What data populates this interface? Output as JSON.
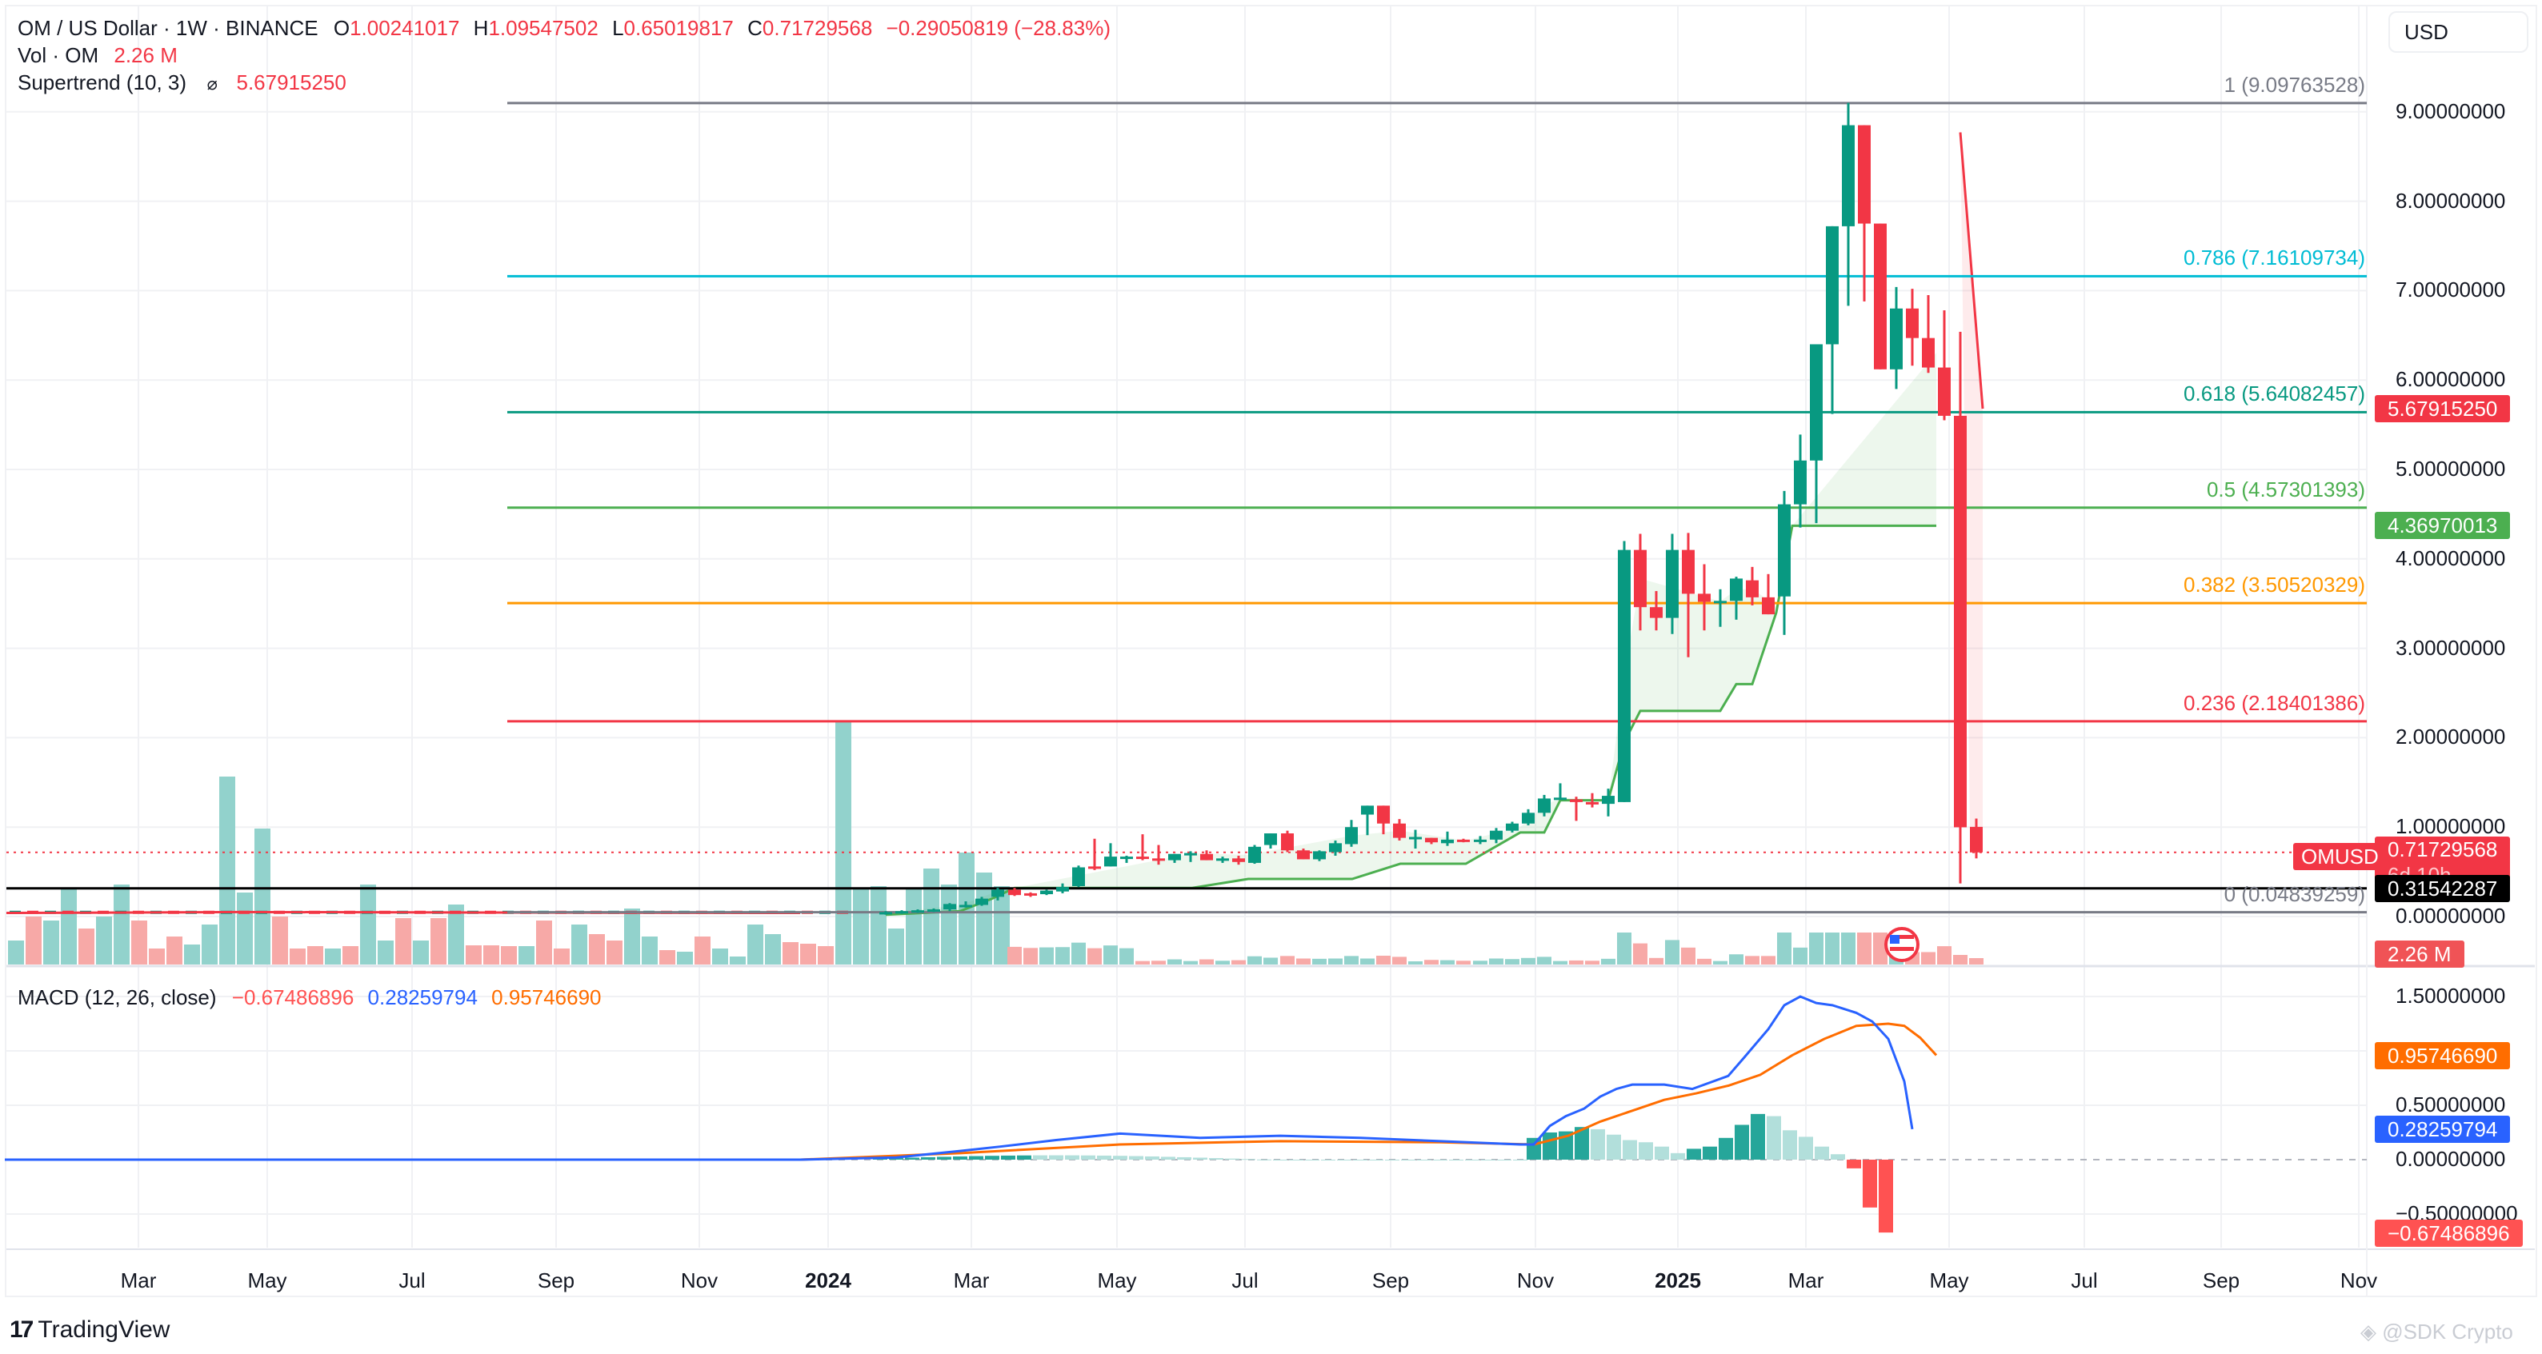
{
  "header": {
    "symbol_title": "OM / US Dollar · 1W · BINANCE",
    "ohlc": [
      {
        "key": "O",
        "value": "1.00241017"
      },
      {
        "key": "H",
        "value": "1.09547502"
      },
      {
        "key": "L",
        "value": "0.65019817"
      },
      {
        "key": "C",
        "value": "0.71729568"
      }
    ],
    "change": "−0.29050819 (−28.83%)",
    "volume_label": "Vol · OM",
    "volume_value": "2.26 M",
    "supertrend_label": "Supertrend (10, 3)",
    "supertrend_icon": "hidden-eye-icon",
    "supertrend_value": "5.67915250"
  },
  "currency_button": "USD",
  "price_axis": {
    "ticks": [
      "9.00000000",
      "8.00000000",
      "7.00000000",
      "6.00000000",
      "5.00000000",
      "4.00000000",
      "3.00000000",
      "2.00000000",
      "1.00000000",
      "0.00000000"
    ],
    "tick_values": [
      9,
      8,
      7,
      6,
      5,
      4,
      3,
      2,
      1,
      0
    ],
    "badges": [
      {
        "name": "supertrend-upper-badge",
        "value": "5.67915250",
        "price": 5.6792,
        "color": "#f23645"
      },
      {
        "name": "supertrend-lower-badge",
        "value": "4.36970013",
        "price": 4.3697,
        "color": "#4caf50"
      },
      {
        "name": "last-price-badge",
        "value": "0.71729568",
        "sub": "6d 10h",
        "price": 0.7173,
        "color": "#f23645"
      },
      {
        "name": "horizontal-line-badge",
        "value": "0.31542287",
        "price": 0.3154,
        "color": "#000000"
      },
      {
        "name": "volume-badge",
        "value": "2.26 M",
        "color": "#f05356"
      }
    ],
    "symbol_tag": "OMUSD"
  },
  "fibonacci": [
    {
      "level": "1",
      "price": 9.09763528,
      "label": "1 (9.09763528)",
      "color": "#787b86"
    },
    {
      "level": "0.786",
      "price": 7.16109734,
      "label": "0.786 (7.16109734)",
      "color": "#00bcd4"
    },
    {
      "level": "0.618",
      "price": 5.64082457,
      "label": "0.618 (5.64082457)",
      "color": "#089981"
    },
    {
      "level": "0.5",
      "price": 4.57301393,
      "label": "0.5 (4.57301393)",
      "color": "#4caf50"
    },
    {
      "level": "0.382",
      "price": 3.50520329,
      "label": "0.382 (3.50520329)",
      "color": "#ff9800"
    },
    {
      "level": "0.236",
      "price": 2.18401386,
      "label": "0.236 (2.18401386)",
      "color": "#f23645"
    },
    {
      "level": "0",
      "price": 0.04839259,
      "label": "0 (0.04839259)",
      "color": "#787b86"
    }
  ],
  "macd": {
    "label": "MACD (12, 26, close)",
    "histogram": "−0.67486896",
    "macd_line": "0.28259794",
    "signal_line": "0.95746690",
    "ticks": [
      "1.50000000",
      "0.50000000",
      "0.00000000",
      "−0.50000000"
    ],
    "tick_values": [
      1.5,
      0.5,
      0,
      -0.5
    ],
    "badges": [
      {
        "value": "0.95746690",
        "v": 0.9575,
        "color": "#ff6d00"
      },
      {
        "value": "0.28259794",
        "v": 0.2826,
        "color": "#2962ff"
      },
      {
        "value": "−0.67486896",
        "v": -0.6749,
        "color": "#ff5252"
      }
    ]
  },
  "time_axis": [
    {
      "label": "Mar",
      "x": 173
    },
    {
      "label": "May",
      "x": 334
    },
    {
      "label": "Jul",
      "x": 515
    },
    {
      "label": "Sep",
      "x": 695
    },
    {
      "label": "Nov",
      "x": 874
    },
    {
      "label": "2024",
      "x": 1035,
      "year": true
    },
    {
      "label": "Mar",
      "x": 1214
    },
    {
      "label": "May",
      "x": 1396
    },
    {
      "label": "Jul",
      "x": 1556
    },
    {
      "label": "Sep",
      "x": 1738
    },
    {
      "label": "Nov",
      "x": 1919
    },
    {
      "label": "2025",
      "x": 2097,
      "year": true
    },
    {
      "label": "Mar",
      "x": 2257
    },
    {
      "label": "May",
      "x": 2436
    },
    {
      "label": "Jul",
      "x": 2605
    },
    {
      "label": "Sep",
      "x": 2776
    },
    {
      "label": "Nov",
      "x": 2948
    }
  ],
  "footer": {
    "brand": "TradingView",
    "watermark": "@SDK Crypto"
  },
  "event_marker": {
    "icon": "us-flag-icon",
    "x": 2377
  },
  "chart_data": {
    "type": "candlestick",
    "title": "OM / US Dollar · 1W · BINANCE",
    "ylabel": "USD",
    "ylim": [
      0,
      9.2
    ],
    "legend_position": "top-left",
    "grid": true,
    "weekly_candles_from": "2024-01 (x≈1080)",
    "candles": [
      {
        "x": 1107,
        "o": 0.03,
        "h": 0.06,
        "l": 0.02,
        "c": 0.05
      },
      {
        "x": 1127,
        "o": 0.04,
        "h": 0.07,
        "l": 0.03,
        "c": 0.06
      },
      {
        "x": 1147,
        "o": 0.05,
        "h": 0.08,
        "l": 0.04,
        "c": 0.07
      },
      {
        "x": 1167,
        "o": 0.06,
        "h": 0.09,
        "l": 0.05,
        "c": 0.08
      },
      {
        "x": 1187,
        "o": 0.08,
        "h": 0.15,
        "l": 0.06,
        "c": 0.14
      },
      {
        "x": 1207,
        "o": 0.12,
        "h": 0.17,
        "l": 0.1,
        "c": 0.13
      },
      {
        "x": 1227,
        "o": 0.13,
        "h": 0.22,
        "l": 0.12,
        "c": 0.2
      },
      {
        "x": 1247,
        "o": 0.22,
        "h": 0.32,
        "l": 0.18,
        "c": 0.3
      },
      {
        "x": 1268,
        "o": 0.3,
        "h": 0.32,
        "l": 0.23,
        "c": 0.24
      },
      {
        "x": 1288,
        "o": 0.26,
        "h": 0.27,
        "l": 0.22,
        "c": 0.24
      },
      {
        "x": 1308,
        "o": 0.25,
        "h": 0.3,
        "l": 0.24,
        "c": 0.29
      },
      {
        "x": 1328,
        "o": 0.28,
        "h": 0.37,
        "l": 0.26,
        "c": 0.33
      },
      {
        "x": 1348,
        "o": 0.34,
        "h": 0.57,
        "l": 0.33,
        "c": 0.55
      },
      {
        "x": 1368,
        "o": 0.56,
        "h": 0.87,
        "l": 0.52,
        "c": 0.55
      },
      {
        "x": 1388,
        "o": 0.56,
        "h": 0.82,
        "l": 0.57,
        "c": 0.67
      },
      {
        "x": 1408,
        "o": 0.66,
        "h": 0.68,
        "l": 0.6,
        "c": 0.67
      },
      {
        "x": 1428,
        "o": 0.67,
        "h": 0.92,
        "l": 0.63,
        "c": 0.66
      },
      {
        "x": 1448,
        "o": 0.65,
        "h": 0.8,
        "l": 0.58,
        "c": 0.63
      },
      {
        "x": 1468,
        "o": 0.63,
        "h": 0.7,
        "l": 0.6,
        "c": 0.7
      },
      {
        "x": 1488,
        "o": 0.7,
        "h": 0.73,
        "l": 0.61,
        "c": 0.71
      },
      {
        "x": 1508,
        "o": 0.7,
        "h": 0.74,
        "l": 0.63,
        "c": 0.63
      },
      {
        "x": 1528,
        "o": 0.63,
        "h": 0.67,
        "l": 0.6,
        "c": 0.65
      },
      {
        "x": 1548,
        "o": 0.65,
        "h": 0.68,
        "l": 0.58,
        "c": 0.61
      },
      {
        "x": 1568,
        "o": 0.6,
        "h": 0.8,
        "l": 0.59,
        "c": 0.78
      },
      {
        "x": 1588,
        "o": 0.8,
        "h": 0.9,
        "l": 0.76,
        "c": 0.93
      },
      {
        "x": 1609,
        "o": 0.93,
        "h": 0.96,
        "l": 0.72,
        "c": 0.74
      },
      {
        "x": 1629,
        "o": 0.74,
        "h": 0.76,
        "l": 0.64,
        "c": 0.64
      },
      {
        "x": 1649,
        "o": 0.64,
        "h": 0.74,
        "l": 0.62,
        "c": 0.73
      },
      {
        "x": 1669,
        "o": 0.72,
        "h": 0.85,
        "l": 0.68,
        "c": 0.82
      },
      {
        "x": 1689,
        "o": 0.81,
        "h": 1.08,
        "l": 0.78,
        "c": 1.0
      },
      {
        "x": 1709,
        "o": 1.14,
        "h": 1.19,
        "l": 0.91,
        "c": 1.24
      },
      {
        "x": 1729,
        "o": 1.24,
        "h": 1.23,
        "l": 0.92,
        "c": 1.04
      },
      {
        "x": 1749,
        "o": 1.04,
        "h": 1.09,
        "l": 0.85,
        "c": 0.88
      },
      {
        "x": 1769,
        "o": 0.89,
        "h": 0.97,
        "l": 0.76,
        "c": 0.89
      },
      {
        "x": 1789,
        "o": 0.88,
        "h": 0.87,
        "l": 0.81,
        "c": 0.83
      },
      {
        "x": 1809,
        "o": 0.82,
        "h": 0.95,
        "l": 0.79,
        "c": 0.86
      },
      {
        "x": 1829,
        "o": 0.86,
        "h": 0.87,
        "l": 0.83,
        "c": 0.84
      },
      {
        "x": 1850,
        "o": 0.84,
        "h": 0.9,
        "l": 0.81,
        "c": 0.86
      },
      {
        "x": 1870,
        "o": 0.86,
        "h": 0.99,
        "l": 0.82,
        "c": 0.96
      },
      {
        "x": 1890,
        "o": 0.96,
        "h": 1.06,
        "l": 0.94,
        "c": 1.04
      },
      {
        "x": 1910,
        "o": 1.04,
        "h": 1.2,
        "l": 1.02,
        "c": 1.16
      },
      {
        "x": 1930,
        "o": 1.16,
        "h": 1.36,
        "l": 1.12,
        "c": 1.32
      },
      {
        "x": 1950,
        "o": 1.32,
        "h": 1.49,
        "l": 1.34,
        "c": 1.33
      },
      {
        "x": 1970,
        "o": 1.31,
        "h": 1.34,
        "l": 1.07,
        "c": 1.28
      },
      {
        "x": 1990,
        "o": 1.28,
        "h": 1.38,
        "l": 1.22,
        "c": 1.26
      },
      {
        "x": 2010,
        "o": 1.26,
        "h": 1.43,
        "l": 1.12,
        "c": 1.35
      },
      {
        "x": 2030,
        "o": 1.28,
        "h": 4.2,
        "l": 1.28,
        "c": 4.1
      },
      {
        "x": 2050,
        "o": 4.1,
        "h": 4.28,
        "l": 3.2,
        "c": 3.46
      },
      {
        "x": 2070,
        "o": 3.46,
        "h": 3.64,
        "l": 3.2,
        "c": 3.34
      },
      {
        "x": 2090,
        "o": 3.34,
        "h": 4.28,
        "l": 3.16,
        "c": 4.1
      },
      {
        "x": 2110,
        "o": 4.1,
        "h": 4.29,
        "l": 2.9,
        "c": 3.61
      },
      {
        "x": 2130,
        "o": 3.61,
        "h": 3.94,
        "l": 3.2,
        "c": 3.52
      },
      {
        "x": 2150,
        "o": 3.52,
        "h": 3.66,
        "l": 3.24,
        "c": 3.53
      },
      {
        "x": 2170,
        "o": 3.53,
        "h": 3.8,
        "l": 3.32,
        "c": 3.78
      },
      {
        "x": 2190,
        "o": 3.76,
        "h": 3.91,
        "l": 3.48,
        "c": 3.57
      },
      {
        "x": 2210,
        "o": 3.57,
        "h": 3.83,
        "l": 3.41,
        "c": 3.38
      },
      {
        "x": 2230,
        "o": 3.58,
        "h": 4.76,
        "l": 3.15,
        "c": 4.61
      },
      {
        "x": 2250,
        "o": 4.61,
        "h": 5.39,
        "l": 4.35,
        "c": 5.1
      },
      {
        "x": 2270,
        "o": 5.1,
        "h": 6.24,
        "l": 4.4,
        "c": 6.4
      },
      {
        "x": 2290,
        "o": 6.4,
        "h": 7.46,
        "l": 5.62,
        "c": 7.72
      },
      {
        "x": 2310,
        "o": 7.72,
        "h": 9.1,
        "l": 6.83,
        "c": 8.85
      },
      {
        "x": 2330,
        "o": 8.85,
        "h": 8.63,
        "l": 6.88,
        "c": 7.75
      },
      {
        "x": 2350,
        "o": 7.75,
        "h": 7.41,
        "l": 6.16,
        "c": 6.12
      },
      {
        "x": 2370,
        "o": 6.12,
        "h": 7.04,
        "l": 5.9,
        "c": 6.8
      },
      {
        "x": 2390,
        "o": 6.8,
        "h": 7.02,
        "l": 6.16,
        "c": 6.47
      },
      {
        "x": 2410,
        "o": 6.47,
        "h": 6.95,
        "l": 6.08,
        "c": 6.14
      },
      {
        "x": 2430,
        "o": 6.14,
        "h": 6.78,
        "l": 5.55,
        "c": 5.6
      },
      {
        "x": 2450,
        "o": 5.6,
        "h": 6.54,
        "l": 0.37,
        "c": 0.998
      },
      {
        "x": 2470,
        "o": 1.0024,
        "h": 1.0955,
        "l": 0.6502,
        "c": 0.7173
      }
    ],
    "supertrend": {
      "upper_last": 5.6792,
      "lower_last": 4.3697,
      "lower_points": [
        [
          1107,
          0.02
        ],
        [
          1200,
          0.06
        ],
        [
          1240,
          0.2
        ],
        [
          1268,
          0.32
        ],
        [
          1490,
          0.32
        ],
        [
          1560,
          0.42
        ],
        [
          1690,
          0.42
        ],
        [
          1750,
          0.59
        ],
        [
          1832,
          0.59
        ],
        [
          1900,
          0.94
        ],
        [
          1930,
          0.94
        ],
        [
          1950,
          1.3
        ],
        [
          2010,
          1.3
        ],
        [
          2030,
          1.95
        ],
        [
          2050,
          2.3
        ],
        [
          2150,
          2.3
        ],
        [
          2170,
          2.6
        ],
        [
          2190,
          2.6
        ],
        [
          2220,
          3.4
        ],
        [
          2240,
          4.37
        ],
        [
          2420,
          4.37
        ]
      ],
      "upper_points": [
        [
          2450,
          8.77
        ],
        [
          2478,
          5.68
        ]
      ]
    },
    "volume_note": "Volume histogram at bottom of price pane; last bar 2.26M (red)",
    "macd_series": {
      "macd_points": [
        [
          6,
          0
        ],
        [
          1000,
          0.0
        ],
        [
          1120,
          0.02
        ],
        [
          1200,
          0.08
        ],
        [
          1250,
          0.12
        ],
        [
          1320,
          0.18
        ],
        [
          1400,
          0.24
        ],
        [
          1500,
          0.2
        ],
        [
          1600,
          0.22
        ],
        [
          1700,
          0.2
        ],
        [
          1800,
          0.17
        ],
        [
          1900,
          0.14
        ],
        [
          1917,
          0.14
        ],
        [
          1937,
          0.31
        ],
        [
          1957,
          0.4
        ],
        [
          1980,
          0.47
        ],
        [
          2000,
          0.58
        ],
        [
          2020,
          0.65
        ],
        [
          2040,
          0.69
        ],
        [
          2080,
          0.69
        ],
        [
          2115,
          0.65
        ],
        [
          2160,
          0.77
        ],
        [
          2180,
          0.94
        ],
        [
          2210,
          1.2
        ],
        [
          2230,
          1.42
        ],
        [
          2250,
          1.5
        ],
        [
          2270,
          1.44
        ],
        [
          2290,
          1.42
        ],
        [
          2320,
          1.35
        ],
        [
          2340,
          1.27
        ],
        [
          2360,
          1.11
        ],
        [
          2380,
          0.72
        ],
        [
          2390,
          0.28
        ]
      ],
      "signal_points": [
        [
          6,
          0
        ],
        [
          1000,
          0.0
        ],
        [
          1200,
          0.06
        ],
        [
          1400,
          0.14
        ],
        [
          1600,
          0.17
        ],
        [
          1800,
          0.16
        ],
        [
          1917,
          0.14
        ],
        [
          1960,
          0.22
        ],
        [
          2000,
          0.35
        ],
        [
          2040,
          0.45
        ],
        [
          2080,
          0.55
        ],
        [
          2120,
          0.61
        ],
        [
          2160,
          0.68
        ],
        [
          2200,
          0.78
        ],
        [
          2240,
          0.96
        ],
        [
          2280,
          1.11
        ],
        [
          2320,
          1.23
        ],
        [
          2360,
          1.25
        ],
        [
          2380,
          1.23
        ],
        [
          2400,
          1.12
        ],
        [
          2420,
          0.96
        ]
      ],
      "histogram": [
        {
          "x": 1917,
          "v": 0.2
        },
        {
          "x": 1937,
          "v": 0.25
        },
        {
          "x": 1957,
          "v": 0.26
        },
        {
          "x": 1977,
          "v": 0.3
        },
        {
          "x": 1997,
          "v": 0.28
        },
        {
          "x": 2017,
          "v": 0.23
        },
        {
          "x": 2037,
          "v": 0.18
        },
        {
          "x": 2057,
          "v": 0.16
        },
        {
          "x": 2077,
          "v": 0.12
        },
        {
          "x": 2097,
          "v": 0.06
        },
        {
          "x": 2117,
          "v": 0.1
        },
        {
          "x": 2137,
          "v": 0.12
        },
        {
          "x": 2157,
          "v": 0.2
        },
        {
          "x": 2177,
          "v": 0.32
        },
        {
          "x": 2197,
          "v": 0.42
        },
        {
          "x": 2217,
          "v": 0.4
        },
        {
          "x": 2237,
          "v": 0.27
        },
        {
          "x": 2257,
          "v": 0.21
        },
        {
          "x": 2277,
          "v": 0.12
        },
        {
          "x": 2297,
          "v": 0.05
        },
        {
          "x": 2317,
          "v": -0.08
        },
        {
          "x": 2337,
          "v": -0.44
        },
        {
          "x": 2357,
          "v": -0.67
        }
      ]
    }
  }
}
